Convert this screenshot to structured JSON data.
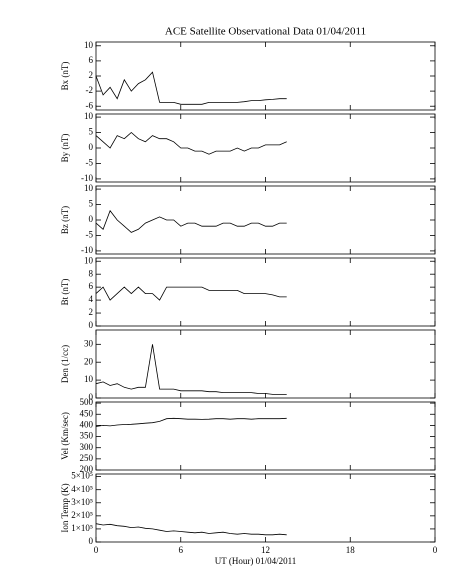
{
  "chart_data": [
    {
      "type": "line",
      "title": "ACE Satellite Observational Data   01/04/2011",
      "ylabel": "Bx (nT)",
      "color": "#000000",
      "x": [
        0,
        0.5,
        1,
        1.5,
        2,
        2.5,
        3,
        3.5,
        4,
        4.5,
        5,
        5.5,
        6,
        6.5,
        7,
        7.5,
        8,
        8.5,
        9,
        9.5,
        10,
        10.5,
        11,
        11.5,
        12,
        12.5,
        13,
        13.5
      ],
      "values": [
        2,
        -3,
        -1,
        -4,
        1,
        -2,
        0,
        1,
        3,
        -5,
        -5,
        -5,
        -5.5,
        -5.5,
        -5.5,
        -5.5,
        -5,
        -5,
        -5,
        -5,
        -5,
        -4.8,
        -4.5,
        -4.5,
        -4.3,
        -4.2,
        -4,
        -4
      ],
      "xlim": [
        0,
        24
      ],
      "xticks": [
        0,
        6,
        12,
        18,
        {
          "value": 24,
          "label": "0"
        }
      ],
      "ylim": [
        -7,
        11
      ],
      "yticks": [
        -6,
        -2,
        2,
        6,
        10
      ]
    },
    {
      "type": "line",
      "ylabel": "By (nT)",
      "color": "#000000",
      "x": [
        0,
        0.5,
        1,
        1.5,
        2,
        2.5,
        3,
        3.5,
        4,
        4.5,
        5,
        5.5,
        6,
        6.5,
        7,
        7.5,
        8,
        8.5,
        9,
        9.5,
        10,
        10.5,
        11,
        11.5,
        12,
        12.5,
        13,
        13.5
      ],
      "values": [
        4,
        2,
        0,
        4,
        3,
        5,
        3,
        2,
        4,
        3,
        3,
        2,
        0,
        0,
        -1,
        -1,
        -2,
        -1,
        -1,
        -1,
        0,
        -1,
        0,
        0,
        1,
        1,
        1,
        2
      ],
      "xlim": [
        0,
        24
      ],
      "xticks": [
        0,
        6,
        12,
        18,
        {
          "value": 24,
          "label": "0"
        }
      ],
      "ylim": [
        -11,
        11
      ],
      "yticks": [
        -10,
        -5,
        0,
        5,
        10
      ]
    },
    {
      "type": "line",
      "ylabel": "Bz (nT)",
      "color": "#000000",
      "x": [
        0,
        0.5,
        1,
        1.5,
        2,
        2.5,
        3,
        3.5,
        4,
        4.5,
        5,
        5.5,
        6,
        6.5,
        7,
        7.5,
        8,
        8.5,
        9,
        9.5,
        10,
        10.5,
        11,
        11.5,
        12,
        12.5,
        13,
        13.5
      ],
      "values": [
        -1,
        -3,
        3,
        0,
        -2,
        -4,
        -3,
        -1,
        0,
        1,
        0,
        0,
        -2,
        -1,
        -1,
        -2,
        -2,
        -2,
        -1,
        -1,
        -2,
        -2,
        -1,
        -1,
        -2,
        -2,
        -1,
        -1
      ],
      "xlim": [
        0,
        24
      ],
      "xticks": [
        0,
        6,
        12,
        18,
        {
          "value": 24,
          "label": "0"
        }
      ],
      "ylim": [
        -11,
        11
      ],
      "yticks": [
        -10,
        -5,
        0,
        5,
        10
      ]
    },
    {
      "type": "line",
      "ylabel": "Bt (nT)",
      "color": "#000000",
      "x": [
        0,
        0.5,
        1,
        1.5,
        2,
        2.5,
        3,
        3.5,
        4,
        4.5,
        5,
        5.5,
        6,
        6.5,
        7,
        7.5,
        8,
        8.5,
        9,
        9.5,
        10,
        10.5,
        11,
        11.5,
        12,
        12.5,
        13,
        13.5
      ],
      "values": [
        5,
        6,
        4,
        5,
        6,
        5,
        6,
        5,
        5,
        4,
        6,
        6,
        6,
        6,
        6,
        6,
        5.5,
        5.5,
        5.5,
        5.5,
        5.5,
        5,
        5,
        5,
        5,
        4.8,
        4.5,
        4.5
      ],
      "xlim": [
        0,
        24
      ],
      "xticks": [
        0,
        6,
        12,
        18,
        {
          "value": 24,
          "label": "0"
        }
      ],
      "ylim": [
        0,
        10.5
      ],
      "yticks": [
        0,
        2,
        4,
        6,
        8,
        10
      ]
    },
    {
      "type": "line",
      "ylabel": "Den (1/cc)",
      "color": "#000000",
      "x": [
        0,
        0.5,
        1,
        1.5,
        2,
        2.5,
        3,
        3.5,
        4,
        4.5,
        5,
        5.5,
        6,
        6.5,
        7,
        7.5,
        8,
        8.5,
        9,
        9.5,
        10,
        10.5,
        11,
        11.5,
        12,
        12.5,
        13,
        13.5
      ],
      "values": [
        8,
        9,
        7,
        8,
        6,
        5,
        6,
        6,
        30,
        5,
        5,
        5,
        4,
        4,
        4,
        4,
        3.5,
        3.5,
        3,
        3,
        3,
        3,
        3,
        2.5,
        2.5,
        2,
        2,
        2
      ],
      "xlim": [
        0,
        24
      ],
      "xticks": [
        0,
        6,
        12,
        18,
        {
          "value": 24,
          "label": "0"
        }
      ],
      "ylim": [
        0,
        38
      ],
      "yticks": [
        0,
        10,
        20,
        30
      ]
    },
    {
      "type": "line",
      "ylabel": "Vel (Km/sec)",
      "color": "#000000",
      "x": [
        0,
        0.5,
        1,
        1.5,
        2,
        2.5,
        3,
        3.5,
        4,
        4.5,
        5,
        5.5,
        6,
        6.5,
        7,
        7.5,
        8,
        8.5,
        9,
        9.5,
        10,
        10.5,
        11,
        11.5,
        12,
        12.5,
        13,
        13.5
      ],
      "values": [
        395,
        400,
        398,
        402,
        404,
        405,
        407,
        410,
        412,
        418,
        430,
        432,
        430,
        428,
        428,
        427,
        428,
        430,
        430,
        428,
        430,
        430,
        428,
        430,
        430,
        430,
        430,
        432
      ],
      "xlim": [
        0,
        24
      ],
      "xticks": [
        0,
        6,
        12,
        18,
        {
          "value": 24,
          "label": "0"
        }
      ],
      "ylim": [
        200,
        505
      ],
      "yticks": [
        200,
        250,
        300,
        350,
        400,
        450,
        500
      ]
    },
    {
      "type": "line",
      "ylabel": "Ion Temp (K)",
      "xlabel": "UT (Hour)   01/04/2011",
      "color": "#000000",
      "x": [
        0,
        0.5,
        1,
        1.5,
        2,
        2.5,
        3,
        3.5,
        4,
        4.5,
        5,
        5.5,
        6,
        6.5,
        7,
        7.5,
        8,
        8.5,
        9,
        9.5,
        10,
        10.5,
        11,
        11.5,
        12,
        12.5,
        13,
        13.5
      ],
      "values": [
        140000,
        130000,
        135000,
        125000,
        120000,
        110000,
        115000,
        105000,
        100000,
        90000,
        80000,
        85000,
        80000,
        75000,
        70000,
        75000,
        65000,
        70000,
        75000,
        65000,
        60000,
        65000,
        60000,
        60000,
        55000,
        55000,
        60000,
        55000
      ],
      "xlim": [
        0,
        24
      ],
      "xticks": [
        0,
        6,
        12,
        18,
        {
          "value": 24,
          "label": "0"
        }
      ],
      "ylim": [
        0,
        520000
      ],
      "yticks": [
        0,
        {
          "value": 100000,
          "label": "1×10⁵"
        },
        {
          "value": 200000,
          "label": "2×10⁵"
        },
        {
          "value": 300000,
          "label": "3×10⁵"
        },
        {
          "value": 400000,
          "label": "4×10⁵"
        },
        {
          "value": 500000,
          "label": "5×10⁵"
        }
      ]
    }
  ]
}
